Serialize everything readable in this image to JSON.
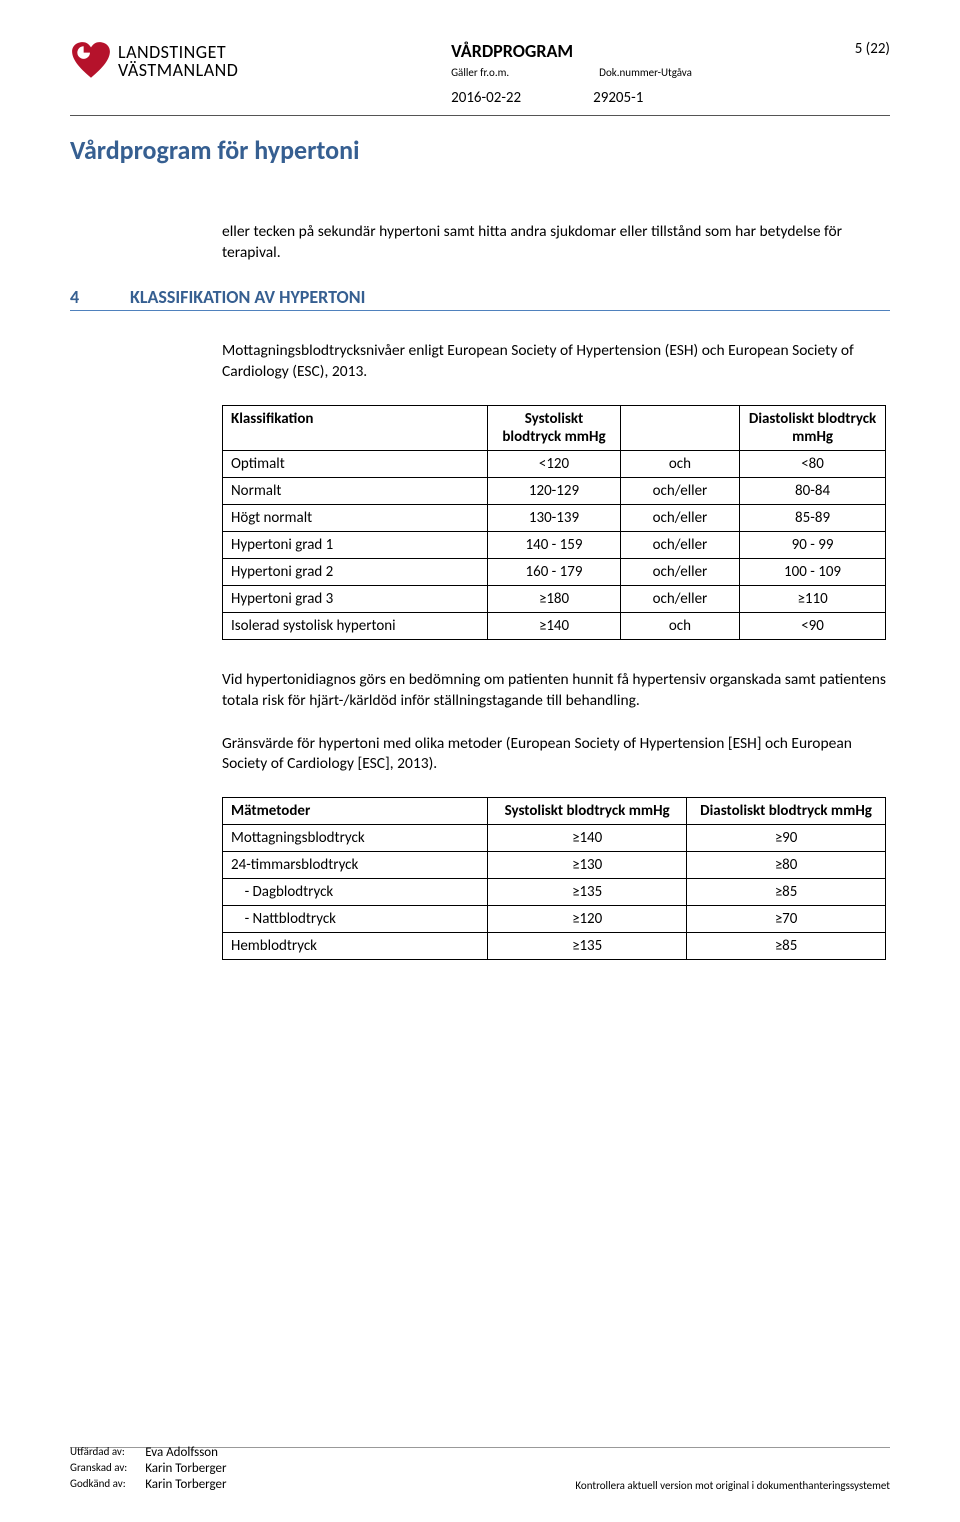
{
  "header": {
    "logo": {
      "line1": "LANDSTINGET",
      "line2": "VÄSTMANLAND"
    },
    "vardprogram": "VÅRDPROGRAM",
    "meta_left_label": "Gäller fr.o.m.",
    "meta_right_label": "Dok.nummer-Utgåva",
    "date": "2016-02-22",
    "docnum": "29205-1",
    "page": "5 (22)"
  },
  "doc_title": "Vårdprogram för hypertoni",
  "intro_para": "eller tecken på sekundär hypertoni samt hitta andra sjukdomar eller tillstånd som har betydelse för terapival.",
  "section": {
    "num": "4",
    "title": "KLASSIFIKATION AV HYPERTONI"
  },
  "para1": "Mottagningsblodtrycksnivåer enligt European Society of Hypertension (ESH)  och European Society of Cardiology (ESC), 2013.",
  "table1": {
    "headers": {
      "cls": "Klassifikation",
      "sys": "Systoliskt blodtryck mmHg",
      "dia": "Diastoliskt blodtryck mmHg"
    },
    "rows": [
      {
        "cls": "Optimalt",
        "sys": "<120",
        "rel": "och",
        "dia": "<80"
      },
      {
        "cls": "Normalt",
        "sys": "120-129",
        "rel": "och/eller",
        "dia": "80-84"
      },
      {
        "cls": "Högt normalt",
        "sys": "130-139",
        "rel": "och/eller",
        "dia": "85-89"
      },
      {
        "cls": "Hypertoni grad 1",
        "sys": "140 - 159",
        "rel": "och/eller",
        "dia": "90 - 99"
      },
      {
        "cls": "Hypertoni grad 2",
        "sys": "160 - 179",
        "rel": "och/eller",
        "dia": "100 - 109"
      },
      {
        "cls": "Hypertoni grad 3",
        "sys": "≥180",
        "rel": "och/eller",
        "dia": "≥110"
      },
      {
        "cls": "Isolerad systolisk hypertoni",
        "sys": "≥140",
        "rel": "och",
        "dia": "<90"
      }
    ]
  },
  "para2": "Vid hypertonidiagnos görs en bedömning om patienten hunnit få hypertensiv organskada samt patientens totala risk för hjärt-/kärldöd inför ställningstagande till behandling.",
  "para3": "Gränsvärde för hypertoni med olika metoder (European Society of Hypertension [ESH] och European Society of Cardiology [ESC], 2013).",
  "table2": {
    "headers": {
      "meth": "Mätmetoder",
      "sys": "Systoliskt blodtryck mmHg",
      "dia": "Diastoliskt blodtryck mmHg"
    },
    "rows": [
      {
        "meth": "Mottagningsblodtryck",
        "sys": "≥140",
        "dia": "≥90"
      },
      {
        "meth": "24-timmarsblodtryck",
        "sys": "≥130",
        "dia": "≥80"
      },
      {
        "meth": "    - Dagblodtryck",
        "sys": "≥135",
        "dia": "≥85"
      },
      {
        "meth": "    - Nattblodtryck",
        "sys": "≥120",
        "dia": "≥70"
      },
      {
        "meth": "Hemblodtryck",
        "sys": "≥135",
        "dia": "≥85"
      }
    ]
  },
  "footer": {
    "issued_lbl": "Utfärdad av:",
    "issued_name": "Eva Adolfsson",
    "reviewed_lbl": "Granskad av:",
    "reviewed_name": "Karin Torberger",
    "approved_lbl": "Godkänd av:",
    "approved_name": "Karin Torberger",
    "note": "Kontrollera aktuell version mot original i dokumenthanteringssystemet"
  }
}
